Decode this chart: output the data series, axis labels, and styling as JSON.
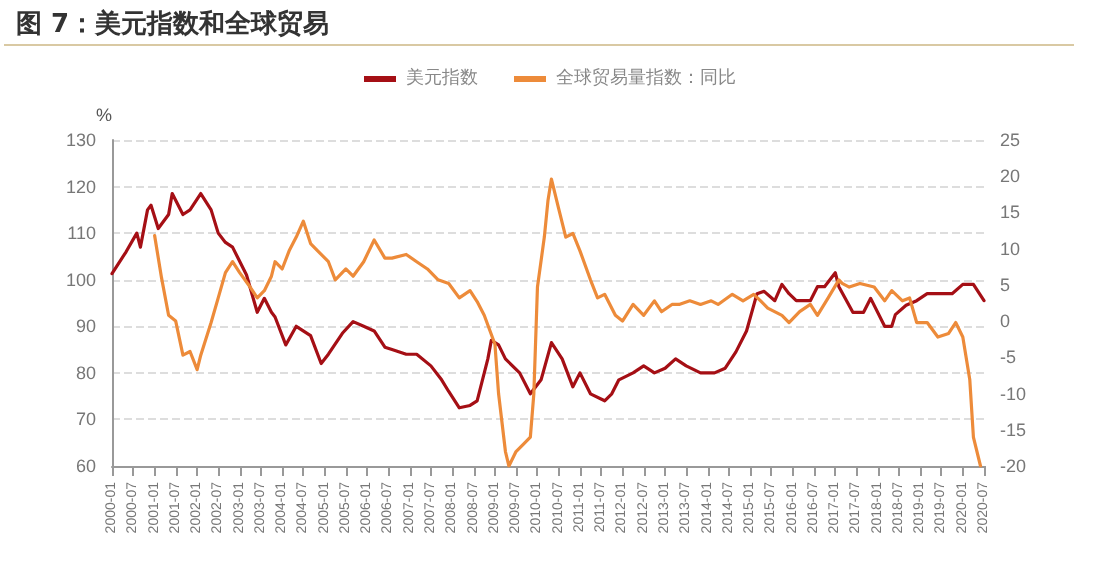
{
  "chart_data": {
    "type": "line",
    "title": "图 7：美元指数和全球贸易",
    "ylabel": "%",
    "xlim": [
      "2000-01",
      "2020-07"
    ],
    "xticks": [
      "2000-01",
      "2000-07",
      "2001-01",
      "2001-07",
      "2002-01",
      "2002-07",
      "2003-01",
      "2003-07",
      "2004-01",
      "2004-07",
      "2005-01",
      "2005-07",
      "2006-01",
      "2006-07",
      "2007-01",
      "2007-07",
      "2008-01",
      "2008-07",
      "2009-01",
      "2009-07",
      "2010-01",
      "2010-07",
      "2011-01",
      "2011-07",
      "2012-01",
      "2012-07",
      "2013-01",
      "2013-07",
      "2014-01",
      "2014-07",
      "2015-01",
      "2015-07",
      "2016-01",
      "2016-07",
      "2017-01",
      "2017-07",
      "2018-01",
      "2018-07",
      "2019-01",
      "2019-07",
      "2020-01",
      "2020-07"
    ],
    "ylim": [
      60,
      130
    ],
    "yticks": [
      60,
      70,
      80,
      90,
      100,
      110,
      120,
      130
    ],
    "y2lim": [
      -20,
      25
    ],
    "y2ticks": [
      -20,
      -15,
      -10,
      -5,
      0,
      5,
      10,
      15,
      20,
      25
    ],
    "grid": "y",
    "legend": "top",
    "marker": "none",
    "line_style": "solid",
    "series": [
      {
        "name": "美元指数",
        "color": "#a50f15",
        "x": [
          "2000-01",
          "2000-05",
          "2000-08",
          "2000-09",
          "2000-11",
          "2000-12",
          "2001-02",
          "2001-05",
          "2001-06",
          "2001-09",
          "2001-11",
          "2002-02",
          "2002-05",
          "2002-07",
          "2002-09",
          "2002-11",
          "2003-03",
          "2003-06",
          "2003-08",
          "2003-10",
          "2003-11",
          "2004-02",
          "2004-05",
          "2004-09",
          "2004-12",
          "2005-02",
          "2005-06",
          "2005-09",
          "2005-12",
          "2006-03",
          "2006-06",
          "2006-08",
          "2006-12",
          "2007-03",
          "2007-07",
          "2007-10",
          "2007-12",
          "2008-03",
          "2008-06",
          "2008-08",
          "2008-11",
          "2008-12",
          "2009-02",
          "2009-04",
          "2009-08",
          "2009-11",
          "2010-02",
          "2010-05",
          "2010-08",
          "2010-11",
          "2011-01",
          "2011-04",
          "2011-08",
          "2011-10",
          "2011-12",
          "2012-04",
          "2012-07",
          "2012-10",
          "2013-01",
          "2013-04",
          "2013-07",
          "2013-11",
          "2014-03",
          "2014-06",
          "2014-09",
          "2014-12",
          "2015-03",
          "2015-05",
          "2015-08",
          "2015-10",
          "2015-12",
          "2016-02",
          "2016-06",
          "2016-08",
          "2016-10",
          "2017-01",
          "2017-02",
          "2017-06",
          "2017-09",
          "2017-11",
          "2018-03",
          "2018-05",
          "2018-06",
          "2018-09",
          "2018-12",
          "2019-03",
          "2019-06",
          "2019-10",
          "2020-01",
          "2020-04",
          "2020-07"
        ],
        "values": [
          101.3,
          106,
          110,
          107,
          115,
          116,
          111,
          114,
          118.5,
          114,
          115,
          118.5,
          115,
          110,
          108,
          107,
          101,
          93,
          96,
          93,
          92,
          86,
          90,
          88,
          82,
          84,
          88.5,
          91,
          90,
          89,
          85.5,
          85,
          84,
          84,
          81.5,
          78.5,
          76,
          72.5,
          73,
          74,
          83,
          87,
          86,
          83,
          80,
          75.5,
          78.5,
          86.5,
          83,
          77,
          80,
          75.5,
          74,
          75.5,
          78.5,
          80,
          81.5,
          80,
          81,
          83,
          81.5,
          80,
          80,
          81,
          84.5,
          89,
          97,
          97.5,
          95.5,
          99,
          97,
          95.5,
          95.5,
          98.5,
          98.5,
          101.5,
          98.5,
          93,
          93,
          96,
          90,
          90,
          92.5,
          94.5,
          95.5,
          97,
          97,
          97,
          99,
          99,
          95.5
        ]
      },
      {
        "name": "全球贸易量指数：同比",
        "color": "#ed8b3a",
        "axis": "y2",
        "x": [
          "2001-01",
          "2001-03",
          "2001-05",
          "2001-07",
          "2001-09",
          "2001-11",
          "2002-01",
          "2002-02",
          "2002-05",
          "2002-07",
          "2002-09",
          "2002-11",
          "2003-01",
          "2003-04",
          "2003-06",
          "2003-08",
          "2003-10",
          "2003-11",
          "2004-01",
          "2004-03",
          "2004-05",
          "2004-07",
          "2004-09",
          "2004-11",
          "2005-02",
          "2005-04",
          "2005-07",
          "2005-09",
          "2005-12",
          "2006-03",
          "2006-06",
          "2006-08",
          "2006-12",
          "2007-03",
          "2007-06",
          "2007-09",
          "2007-12",
          "2008-03",
          "2008-06",
          "2008-08",
          "2008-10",
          "2009-01",
          "2009-02",
          "2009-04",
          "2009-05",
          "2009-07",
          "2009-09",
          "2009-11",
          "2009-12",
          "2010-01",
          "2010-03",
          "2010-04",
          "2010-05",
          "2010-07",
          "2010-09",
          "2010-11",
          "2011-01",
          "2011-04",
          "2011-06",
          "2011-08",
          "2011-11",
          "2012-01",
          "2012-04",
          "2012-07",
          "2012-10",
          "2012-12",
          "2013-03",
          "2013-05",
          "2013-08",
          "2013-11",
          "2014-02",
          "2014-04",
          "2014-08",
          "2014-11",
          "2015-02",
          "2015-04",
          "2015-06",
          "2015-10",
          "2015-12",
          "2016-03",
          "2016-06",
          "2016-08",
          "2016-11",
          "2017-02",
          "2017-03",
          "2017-05",
          "2017-08",
          "2017-12",
          "2018-03",
          "2018-05",
          "2018-08",
          "2018-10",
          "2018-12",
          "2019-03",
          "2019-06",
          "2019-09",
          "2019-11",
          "2020-01",
          "2020-03",
          "2020-04",
          "2020-06"
        ],
        "values": [
          11.8,
          6,
          0.8,
          0,
          -4.7,
          -4.2,
          -6.7,
          -4.7,
          -0.2,
          3.2,
          6.7,
          8.2,
          6.7,
          4.7,
          3.2,
          4.2,
          6.2,
          8.2,
          7.2,
          9.7,
          11.6,
          13.8,
          10.7,
          9.7,
          8.2,
          5.7,
          7.2,
          6.2,
          8.2,
          11.2,
          8.7,
          8.7,
          9.2,
          8.2,
          7.2,
          5.7,
          5.2,
          3.2,
          4.2,
          2.7,
          0.8,
          -3.2,
          -10,
          -18,
          -20,
          -18,
          -17,
          -16,
          -10,
          4.7,
          11.6,
          16.6,
          19.6,
          15.6,
          11.6,
          12.1,
          9.7,
          5.7,
          3.2,
          3.7,
          0.8,
          0,
          2.3,
          0.8,
          2.8,
          1.3,
          2.3,
          2.3,
          2.8,
          2.3,
          2.8,
          2.3,
          3.7,
          2.8,
          3.7,
          2.8,
          1.8,
          0.8,
          -0.2,
          1.3,
          2.3,
          0.8,
          3.2,
          5.7,
          5.2,
          4.7,
          5.2,
          4.7,
          2.8,
          4.2,
          2.8,
          3.2,
          -0.2,
          -0.2,
          -2.2,
          -1.7,
          -0.2,
          -2.2,
          -8.1,
          -16,
          -20
        ]
      }
    ]
  }
}
